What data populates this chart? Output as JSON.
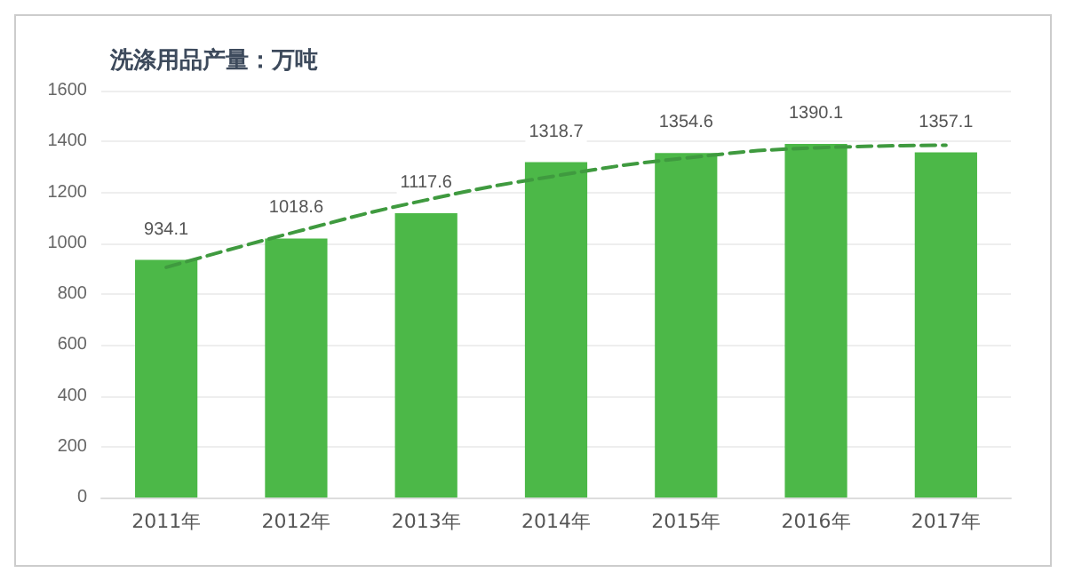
{
  "chart_data": {
    "type": "bar",
    "title": "洗涤用品产量：万吨",
    "categories": [
      "2011年",
      "2012年",
      "2013年",
      "2014年",
      "2015年",
      "2016年",
      "2017年"
    ],
    "series": [
      {
        "type": "bar",
        "color": "#4cb848",
        "values": [
          934.1,
          1018.6,
          1117.6,
          1318.7,
          1354.6,
          1390.1,
          1357.1
        ],
        "value_labels": [
          "934.1",
          "1018.6",
          "1117.6",
          "1318.7",
          "1354.6",
          "1390.1",
          "1357.1"
        ]
      },
      {
        "type": "line",
        "color": "#3f9a3f",
        "line_style": "dashed",
        "marker": "none",
        "values": [
          905,
          1045,
          1170,
          1265,
          1335,
          1375,
          1385
        ]
      }
    ],
    "ylim": [
      0,
      1600
    ],
    "yticks": [
      0,
      200,
      400,
      600,
      800,
      1000,
      1200,
      1400,
      1600
    ],
    "grid": "y"
  }
}
